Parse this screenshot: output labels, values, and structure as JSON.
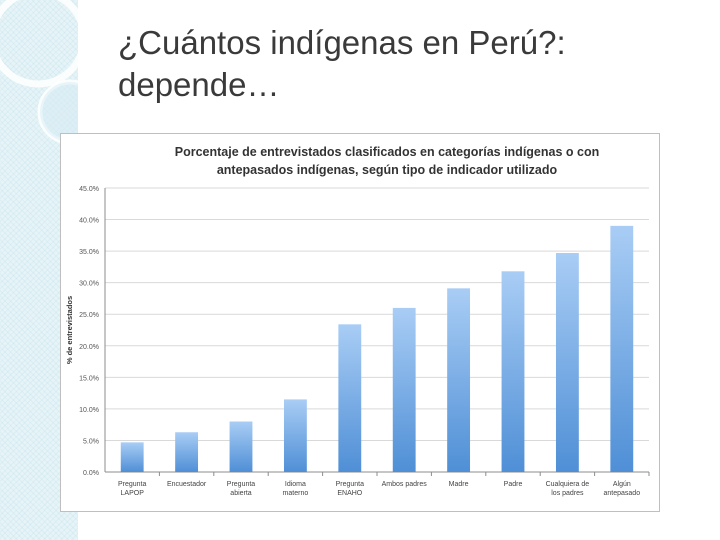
{
  "slide": {
    "title": "¿Cuántos indígenas en Perú?: depende…"
  },
  "colors": {
    "title_text": "#3a3a3a",
    "side_panel": "#e6f3f7",
    "bar_top": "#a9cdf5",
    "bar_bottom": "#4f8fd6",
    "grid": "#d9d9d9"
  },
  "chart_data": {
    "type": "bar",
    "title": "Porcentaje de entrevistados clasificados en categorías indígenas o con antepasados indígenas, según tipo de indicador utilizado",
    "title_lines": [
      "Porcentaje de entrevistados clasificados en categorías indígenas o con",
      "antepasados indígenas, según tipo de indicador utilizado"
    ],
    "xlabel": "",
    "ylabel": "% de entrevistados",
    "ylim": [
      0,
      45
    ],
    "y_ticks": [
      "0.0%",
      "5.0%",
      "10.0%",
      "15.0%",
      "20.0%",
      "25.0%",
      "30.0%",
      "35.0%",
      "40.0%",
      "45.0%"
    ],
    "grid": true,
    "legend": "none",
    "categories": [
      [
        "Pregunta",
        "LAPOP"
      ],
      [
        "Encuestador"
      ],
      [
        "Pregunta",
        "abierta"
      ],
      [
        "Idioma",
        "materno"
      ],
      [
        "Pregunta",
        "ENAHO"
      ],
      [
        "Ambos padres"
      ],
      [
        "Madre"
      ],
      [
        "Padre"
      ],
      [
        "Cualquiera de",
        "los padres"
      ],
      [
        "Algún",
        "antepasado"
      ]
    ],
    "values": [
      4.7,
      6.3,
      8.0,
      11.5,
      23.4,
      26.0,
      29.1,
      31.8,
      34.7,
      39.0
    ]
  }
}
